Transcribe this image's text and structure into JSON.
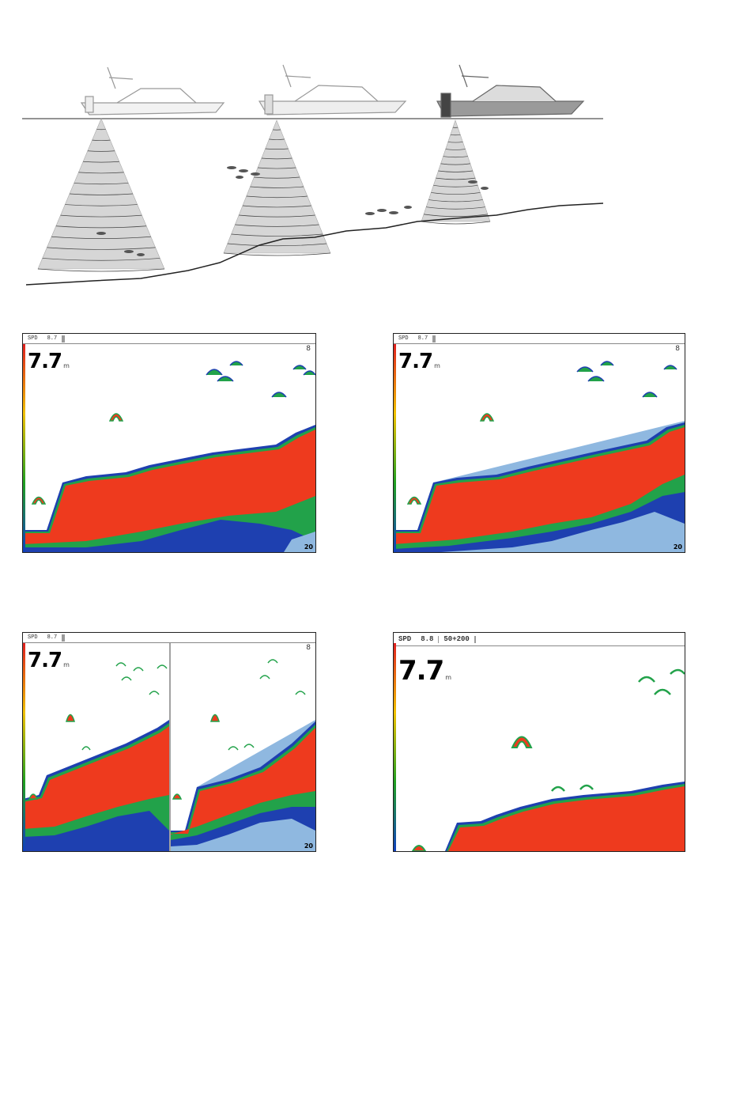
{
  "panels": [
    {
      "status": {
        "spd_label": "SPD",
        "spd_value": "8.7",
        "mode": "",
        "range": "",
        "freq": "",
        "extra": ""
      },
      "depth": "7.7",
      "depth_unit": "m",
      "bottom_range": "20",
      "scale_icon": "8"
    },
    {
      "status": {
        "spd_label": "SPD",
        "spd_value": "8.7",
        "mode": "",
        "range": "",
        "freq": "",
        "extra": ""
      },
      "depth": "7.7",
      "depth_unit": "m",
      "bottom_range": "20",
      "scale_icon": "8"
    },
    {
      "status": {
        "spd_label": "SPD",
        "spd_value": "8.7",
        "mode": "",
        "range": "",
        "freq": "",
        "extra": ""
      },
      "depth": "7.7",
      "depth_unit": "m",
      "bottom_range": "20",
      "scale_icon": "8"
    },
    {
      "status": {
        "spd_label": "SPD",
        "spd_value": "8.8",
        "mode": "",
        "range": "50+200",
        "freq": "",
        "extra": ""
      },
      "depth": "7.7",
      "depth_unit": "m",
      "bottom_range": "",
      "scale_icon": ""
    }
  ],
  "colors": {
    "bottom_red": "#ee3a1e",
    "band_yellow": "#e8d020",
    "band_green": "#22a24a",
    "band_blue": "#1e40b0",
    "band_lightblue": "#8fb8e0",
    "cone_gray": "#cfcfcf"
  }
}
